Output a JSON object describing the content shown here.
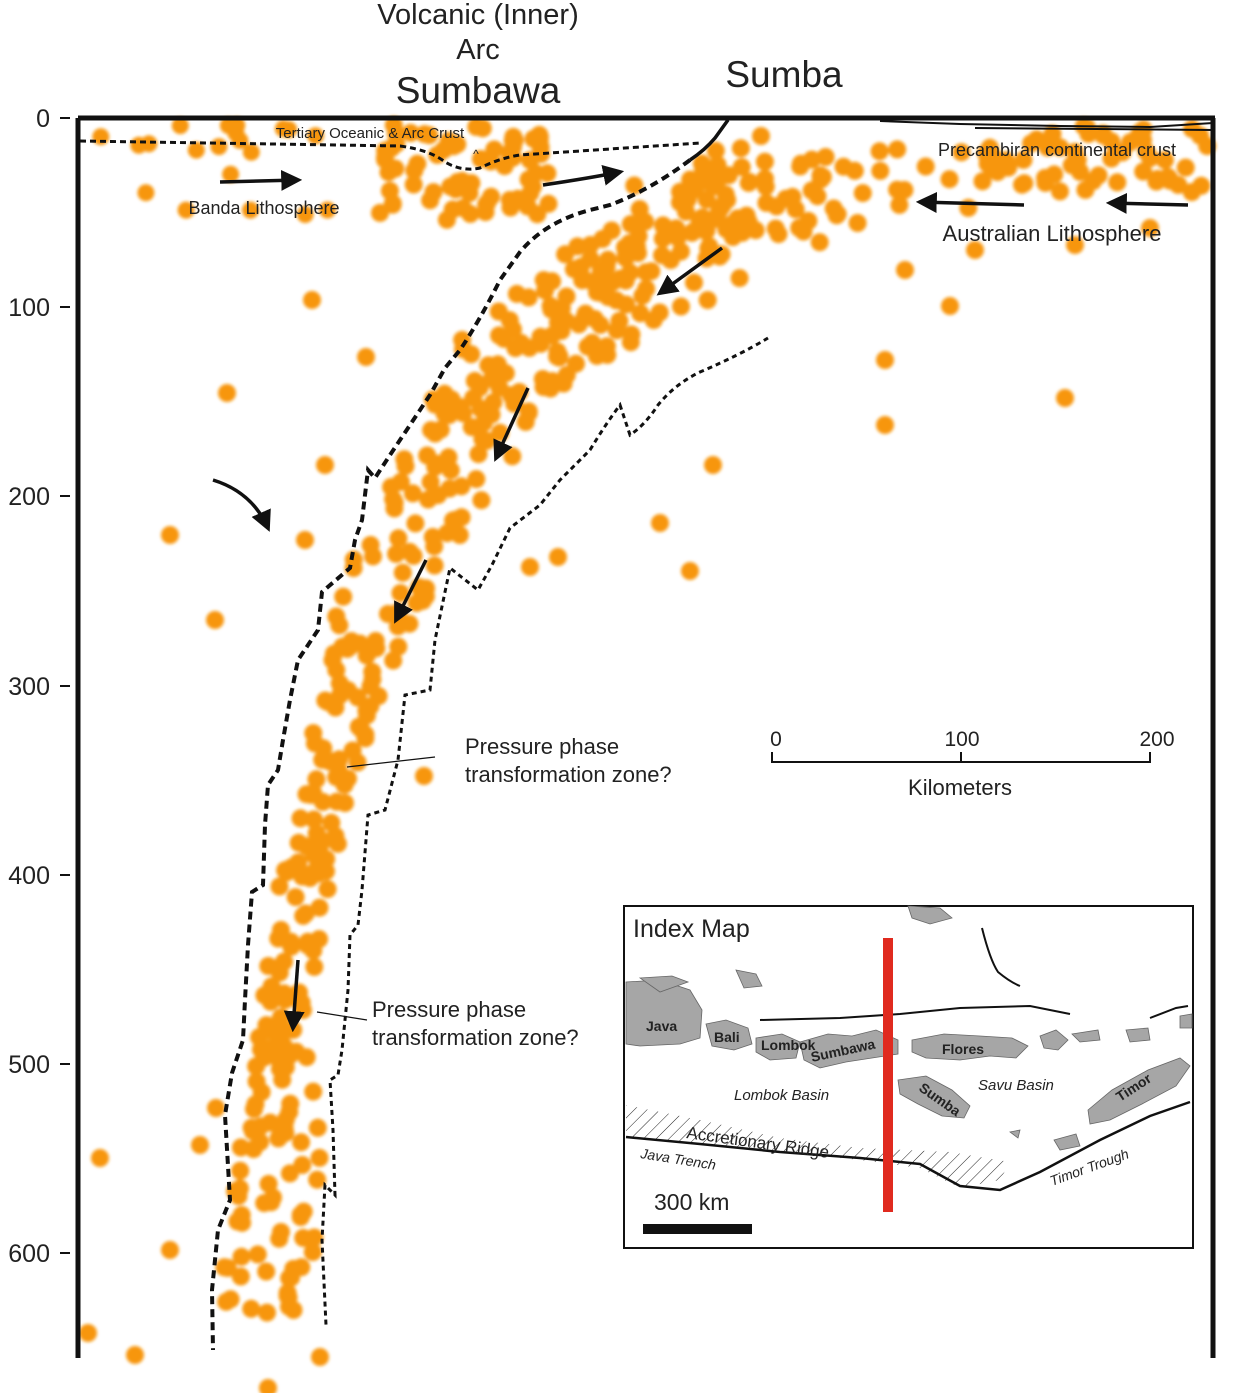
{
  "header": {
    "arc_line1": "Volcanic (Inner)",
    "arc_line2": "Arc",
    "sumbawa": "Sumbawa",
    "sumba": "Sumba"
  },
  "depth_axis": {
    "ticks": [
      "0",
      "100",
      "200",
      "300",
      "400",
      "500",
      "600"
    ]
  },
  "labels": {
    "tertiary_crust": "Tertiary Oceanic & Arc Crust",
    "precambrian_crust": "Precambiran continental crust",
    "banda_lithosphere": "Banda Lithosphere",
    "australian_lithosphere": "Australian Lithosphere",
    "phase_zone_1_line1": "Pressure phase",
    "phase_zone_1_line2": "transformation zone?",
    "phase_zone_2_line1": "Pressure phase",
    "phase_zone_2_line2": "transformation zone?"
  },
  "scale_bar": {
    "ticks": [
      "0",
      "100",
      "200"
    ],
    "unit": "Kilometers"
  },
  "index_map": {
    "title": "Index Map",
    "scale_label": "300 km",
    "islands": {
      "java": "Java",
      "bali": "Bali",
      "lombok": "Lombok",
      "sumbawa": "Sumbawa",
      "flores": "Flores",
      "sumba": "Sumba",
      "timor": "Timor"
    },
    "basins": {
      "lombok_basin": "Lombok Basin",
      "savu_basin": "Savu Basin"
    },
    "features": {
      "accretionary_ridge": "Accretionary Ridge",
      "java_trench": "Java Trench",
      "timor_trough": "Timor Trough"
    },
    "colors": {
      "land": "#a6a6a6",
      "section_line": "#e02a1f"
    }
  },
  "colors": {
    "earthquake": "#f7960d",
    "lines": "#111111"
  }
}
